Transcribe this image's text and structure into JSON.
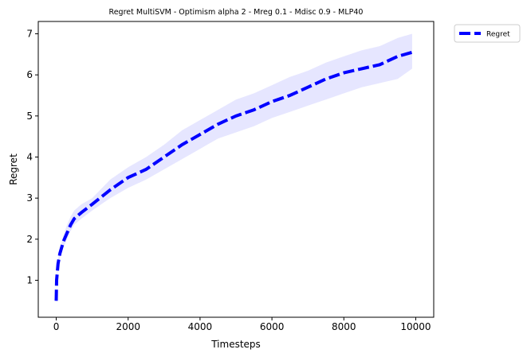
{
  "chart_data": {
    "type": "line",
    "title": "Regret MultiSVM - Optimism alpha 2 - Mreg 0.1 - Mdisc 0.9 - MLP40",
    "xlabel": "Timesteps",
    "ylabel": "Regret",
    "xlim": [
      -500,
      10500
    ],
    "ylim": [
      0.1,
      7.3
    ],
    "xticks": [
      0,
      2000,
      4000,
      6000,
      8000,
      10000
    ],
    "yticks": [
      1,
      2,
      3,
      4,
      5,
      6,
      7
    ],
    "grid": false,
    "legend_position": "outside-top-right",
    "series": [
      {
        "name": "Regret",
        "color": "#0000ff",
        "band_color": "#e6e6ff",
        "x": [
          0,
          10,
          50,
          100,
          200,
          300,
          400,
          500,
          700,
          1000,
          1500,
          2000,
          2500,
          3000,
          3500,
          4000,
          4500,
          5000,
          5500,
          6000,
          6500,
          7000,
          7500,
          8000,
          8500,
          9000,
          9500,
          9900
        ],
        "y": [
          0.5,
          1.0,
          1.4,
          1.65,
          1.95,
          2.15,
          2.35,
          2.5,
          2.65,
          2.85,
          3.2,
          3.5,
          3.7,
          4.0,
          4.3,
          4.55,
          4.8,
          5.0,
          5.15,
          5.35,
          5.5,
          5.7,
          5.9,
          6.05,
          6.15,
          6.25,
          6.45,
          6.55
        ],
        "lower": [
          0.45,
          0.95,
          1.3,
          1.55,
          1.8,
          2.0,
          2.2,
          2.35,
          2.5,
          2.7,
          3.0,
          3.25,
          3.45,
          3.7,
          3.95,
          4.2,
          4.45,
          4.6,
          4.75,
          4.95,
          5.1,
          5.25,
          5.4,
          5.55,
          5.7,
          5.8,
          5.9,
          6.15
        ],
        "upper": [
          0.55,
          1.1,
          1.5,
          1.75,
          2.1,
          2.35,
          2.55,
          2.7,
          2.85,
          3.0,
          3.45,
          3.75,
          4.0,
          4.3,
          4.65,
          4.9,
          5.15,
          5.4,
          5.55,
          5.75,
          5.95,
          6.1,
          6.3,
          6.45,
          6.6,
          6.7,
          6.9,
          7.0
        ]
      }
    ]
  }
}
